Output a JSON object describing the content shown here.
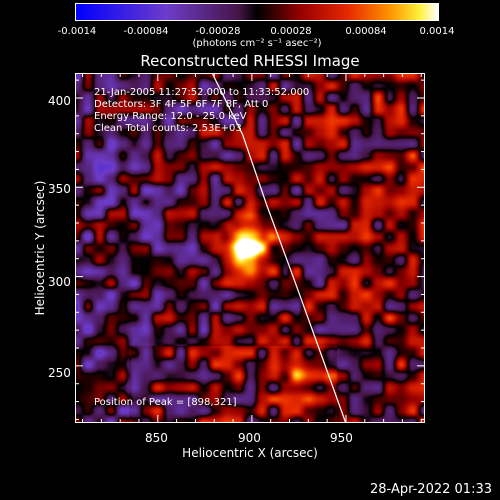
{
  "chart_data": {
    "type": "heatmap",
    "title": "Reconstructed RHESSI Image",
    "xlabel": "Heliocentric X (arcsec)",
    "ylabel": "Heliocentric Y (arcsec)",
    "xlim": [
      806,
      992
    ],
    "ylim": [
      218,
      414
    ],
    "xticks": [
      850,
      900,
      950
    ],
    "yticks": [
      250,
      300,
      350,
      400
    ],
    "colorbar": {
      "ticks": [
        "-0.0014",
        "-0.00084",
        "-0.00028",
        "0.00028",
        "0.00084",
        "0.0014"
      ],
      "unit_label": "(photons cm⁻² s⁻¹ asec⁻²)",
      "range": [
        -0.0014,
        0.0014
      ]
    },
    "annotations": {
      "time": "21-Jan-2005 11:27:52.000 to 11:33:52.000",
      "detectors": "Detectors: 3F 4F 5F 6F 7F 8F, Att 0",
      "energy": "Energy Range: 12.0 - 25.0 keV",
      "clean": "Clean    Total counts: 2.53E+03",
      "peak": "Position of Peak = [898,321]"
    },
    "peak": [
      898,
      321
    ],
    "limb_curve": [
      [
        879,
        414
      ],
      [
        895,
        380
      ],
      [
        908,
        340
      ],
      [
        922,
        300
      ],
      [
        935,
        262
      ],
      [
        950,
        218
      ]
    ],
    "image_grid_note": "",
    "timestamp": "28-Apr-2022 01:33"
  }
}
